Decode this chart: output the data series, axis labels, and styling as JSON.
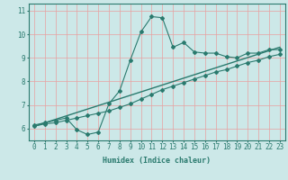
{
  "xlabel": "Humidex (Indice chaleur)",
  "ylabel": "",
  "bg_color": "#cce8e8",
  "line_color": "#2a7a6e",
  "grid_color": "#e8a0a0",
  "xlim": [
    -0.5,
    23.5
  ],
  "ylim": [
    5.5,
    11.3
  ],
  "yticks": [
    6,
    7,
    8,
    9,
    10,
    11
  ],
  "xticks": [
    0,
    1,
    2,
    3,
    4,
    5,
    6,
    7,
    8,
    9,
    10,
    11,
    12,
    13,
    14,
    15,
    16,
    17,
    18,
    19,
    20,
    21,
    22,
    23
  ],
  "curve1_x": [
    0,
    1,
    2,
    3,
    4,
    5,
    6,
    7,
    8,
    9,
    10,
    11,
    12,
    13,
    14,
    15,
    16,
    17,
    18,
    19,
    20,
    21,
    22,
    23
  ],
  "curve1_y": [
    6.15,
    6.25,
    6.35,
    6.45,
    5.95,
    5.75,
    5.85,
    7.05,
    7.6,
    8.9,
    10.1,
    10.75,
    10.7,
    9.45,
    9.65,
    9.25,
    9.2,
    9.2,
    9.05,
    9.0,
    9.2,
    9.2,
    9.35,
    9.35
  ],
  "curve2_x": [
    0,
    23
  ],
  "curve2_y": [
    6.1,
    9.45
  ],
  "curve3_x": [
    0,
    1,
    2,
    3,
    4,
    5,
    6,
    7,
    8,
    9,
    10,
    11,
    12,
    13,
    14,
    15,
    16,
    17,
    18,
    19,
    20,
    21,
    22,
    23
  ],
  "curve3_y": [
    6.1,
    6.2,
    6.25,
    6.35,
    6.45,
    6.55,
    6.65,
    6.75,
    6.9,
    7.05,
    7.25,
    7.45,
    7.65,
    7.8,
    7.95,
    8.1,
    8.25,
    8.4,
    8.5,
    8.65,
    8.8,
    8.9,
    9.05,
    9.15
  ]
}
